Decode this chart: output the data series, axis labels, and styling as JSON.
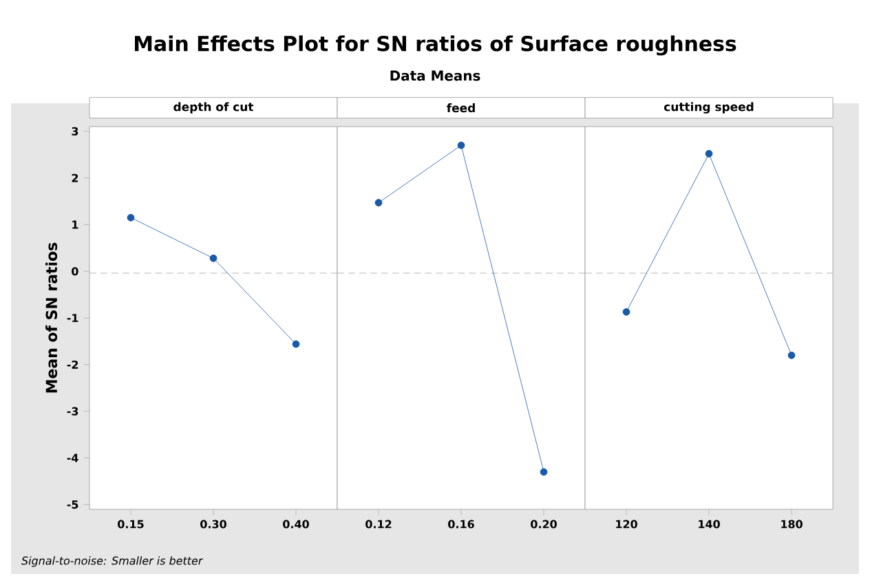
{
  "chart_data": [
    {
      "type": "other",
      "title": "Main Effects Plot for SN ratios of Surface roughness",
      "subtitle": "Data Means",
      "annotations": [
        "Signal-to-noise: Smaller is better"
      ]
    },
    {
      "type": "line",
      "title": "depth of cut",
      "ylabel": "Mean of SN ratios",
      "categories": [
        "0.15",
        "0.30",
        "0.40"
      ],
      "values": [
        1.15,
        0.28,
        -1.56
      ],
      "color": "#1a5aa8",
      "marker": "circle",
      "line_style": "solid",
      "grid": false,
      "ylim": [
        -5.1,
        3.1
      ],
      "yticks": [
        -5,
        -4,
        -3,
        -2,
        -1,
        0,
        1,
        2,
        3
      ],
      "ref_lines": [
        {
          "axis": "y",
          "value": -0.04,
          "color": "#a6a6a6",
          "line_style": "dashed"
        }
      ]
    },
    {
      "type": "line",
      "title": "feed",
      "categories": [
        "0.12",
        "0.16",
        "0.20"
      ],
      "values": [
        1.47,
        2.7,
        -4.3
      ],
      "color": "#1a5aa8",
      "marker": "circle",
      "line_style": "solid",
      "grid": false,
      "ylim": [
        -5.1,
        3.1
      ],
      "tick_labels": "x",
      "ref_lines": [
        {
          "axis": "y",
          "value": -0.04,
          "color": "#a6a6a6",
          "line_style": "dashed"
        }
      ]
    },
    {
      "type": "line",
      "title": "cutting speed",
      "categories": [
        "120",
        "140",
        "180"
      ],
      "values": [
        -0.87,
        2.52,
        -1.8
      ],
      "color": "#1a5aa8",
      "marker": "circle",
      "line_style": "solid",
      "grid": false,
      "ylim": [
        -5.1,
        3.1
      ],
      "tick_labels": "x",
      "ref_lines": [
        {
          "axis": "y",
          "value": -0.04,
          "color": "#a6a6a6",
          "line_style": "dashed"
        }
      ]
    }
  ]
}
